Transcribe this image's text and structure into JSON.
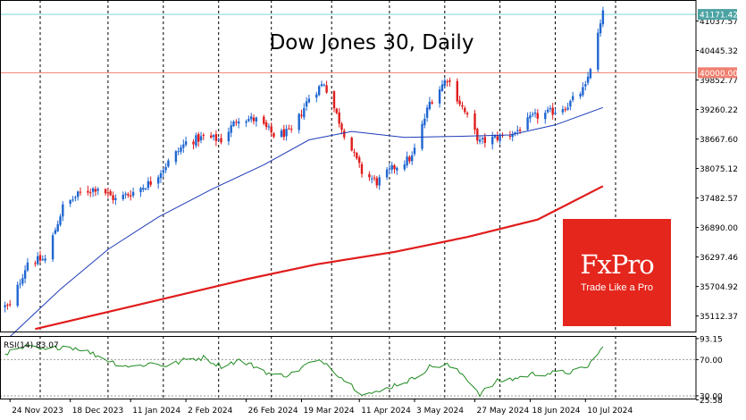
{
  "chart_data": [
    {
      "type": "candlestick",
      "title": "Dow Jones 30, Daily",
      "colors": {
        "up": "#1f66d1",
        "down": "#e01c1c",
        "ma_fast": "#1e3bb8",
        "ma_slow": "#e01c1c",
        "resistance": "#7fd6d6",
        "level": "#f08070",
        "grid": "#000000"
      },
      "ylim": [
        34800,
        41460
      ],
      "y_ticks": [
        "41037.57",
        "40445.32",
        "39852.77",
        "39260.22",
        "38667.60",
        "38075.12",
        "37482.57",
        "36890.00",
        "36297.46",
        "35704.92",
        "35112.37"
      ],
      "y_tick_values": [
        41037.57,
        40445.32,
        39852.77,
        39260.22,
        38667.6,
        38075.12,
        37482.57,
        36890.0,
        36297.46,
        35704.92,
        35112.37
      ],
      "x_ticks": [
        "24 Nov 2023",
        "18 Dec 2023",
        "11 Jan 2024",
        "2 Feb 2024",
        "26 Feb 2024",
        "19 Mar 2024",
        "11 Apr 2024",
        "3 May 2024",
        "27 May 2024",
        "18 Jun 2024",
        "10 Jul 2024"
      ],
      "price_labels": [
        {
          "text": "41171.42",
          "value": 41171.42,
          "kind": "current"
        },
        {
          "text": "40000.00",
          "value": 40000.0,
          "kind": "level"
        }
      ],
      "anchors": [
        [
          "2023-11-24",
          35300
        ],
        [
          "2023-12-01",
          36200
        ],
        [
          "2023-12-08",
          36250
        ],
        [
          "2023-12-15",
          37300
        ],
        [
          "2023-12-22",
          37580
        ],
        [
          "2023-12-29",
          37700
        ],
        [
          "2024-01-05",
          37450
        ],
        [
          "2024-01-12",
          37600
        ],
        [
          "2024-01-19",
          37800
        ],
        [
          "2024-01-26",
          38200
        ],
        [
          "2024-02-02",
          38600
        ],
        [
          "2024-02-09",
          38700
        ],
        [
          "2024-02-16",
          38650
        ],
        [
          "2024-02-23",
          39100
        ],
        [
          "2024-03-01",
          39050
        ],
        [
          "2024-03-08",
          38750
        ],
        [
          "2024-03-15",
          38800
        ],
        [
          "2024-03-22",
          39500
        ],
        [
          "2024-03-28",
          39800
        ],
        [
          "2024-04-04",
          38900
        ],
        [
          "2024-04-12",
          38000
        ],
        [
          "2024-04-18",
          37800
        ],
        [
          "2024-04-25",
          38100
        ],
        [
          "2024-05-02",
          38300
        ],
        [
          "2024-05-09",
          39400
        ],
        [
          "2024-05-16",
          39900
        ],
        [
          "2024-05-23",
          39200
        ],
        [
          "2024-05-29",
          38600
        ],
        [
          "2024-06-05",
          38700
        ],
        [
          "2024-06-12",
          38800
        ],
        [
          "2024-06-19",
          39100
        ],
        [
          "2024-06-26",
          39200
        ],
        [
          "2024-07-03",
          39350
        ],
        [
          "2024-07-10",
          39700
        ],
        [
          "2024-07-17",
          41171
        ]
      ],
      "ma_fast": [
        [
          "2023-11-24",
          34700
        ],
        [
          "2023-12-14",
          35650
        ],
        [
          "2024-01-02",
          36450
        ],
        [
          "2024-01-22",
          37100
        ],
        [
          "2024-02-12",
          37650
        ],
        [
          "2024-03-04",
          38150
        ],
        [
          "2024-03-22",
          38650
        ],
        [
          "2024-04-08",
          38820
        ],
        [
          "2024-04-29",
          38700
        ],
        [
          "2024-05-20",
          38720
        ],
        [
          "2024-06-10",
          38750
        ],
        [
          "2024-06-28",
          38950
        ],
        [
          "2024-07-17",
          39300
        ]
      ],
      "ma_slow": [
        [
          "2023-12-04",
          34850
        ],
        [
          "2024-01-15",
          35350
        ],
        [
          "2024-02-26",
          35850
        ],
        [
          "2024-03-25",
          36150
        ],
        [
          "2024-04-25",
          36400
        ],
        [
          "2024-05-24",
          36700
        ],
        [
          "2024-06-21",
          37050
        ],
        [
          "2024-07-17",
          37720
        ]
      ]
    },
    {
      "type": "line",
      "label": "RSI(14) 83.07",
      "ylim": [
        27,
        96
      ],
      "y_ticks": [
        "93.15",
        "70.00",
        "30.00",
        "25.58"
      ],
      "y_tick_values": [
        93.15,
        70.0,
        30.0,
        25.58
      ],
      "levels": [
        70,
        30
      ],
      "anchors": [
        [
          "2023-11-24",
          78
        ],
        [
          "2023-12-01",
          84
        ],
        [
          "2023-12-08",
          80
        ],
        [
          "2023-12-15",
          85
        ],
        [
          "2023-12-22",
          82
        ],
        [
          "2023-12-29",
          74
        ],
        [
          "2024-01-05",
          66
        ],
        [
          "2024-01-12",
          62
        ],
        [
          "2024-01-19",
          66
        ],
        [
          "2024-01-26",
          63
        ],
        [
          "2024-02-02",
          70
        ],
        [
          "2024-02-09",
          72
        ],
        [
          "2024-02-16",
          63
        ],
        [
          "2024-02-23",
          69
        ],
        [
          "2024-03-01",
          62
        ],
        [
          "2024-03-08",
          52
        ],
        [
          "2024-03-15",
          54
        ],
        [
          "2024-03-22",
          66
        ],
        [
          "2024-03-28",
          68
        ],
        [
          "2024-04-04",
          50
        ],
        [
          "2024-04-12",
          33
        ],
        [
          "2024-04-18",
          33
        ],
        [
          "2024-04-25",
          42
        ],
        [
          "2024-05-02",
          48
        ],
        [
          "2024-05-09",
          62
        ],
        [
          "2024-05-16",
          64
        ],
        [
          "2024-05-23",
          52
        ],
        [
          "2024-05-29",
          32
        ],
        [
          "2024-06-05",
          46
        ],
        [
          "2024-06-12",
          49
        ],
        [
          "2024-06-19",
          54
        ],
        [
          "2024-06-26",
          55
        ],
        [
          "2024-07-03",
          56
        ],
        [
          "2024-07-10",
          60
        ],
        [
          "2024-07-17",
          83
        ]
      ]
    }
  ],
  "logo": {
    "name": "FxPro",
    "tagline": "Trade Like a Pro",
    "color": "#e4261c"
  }
}
